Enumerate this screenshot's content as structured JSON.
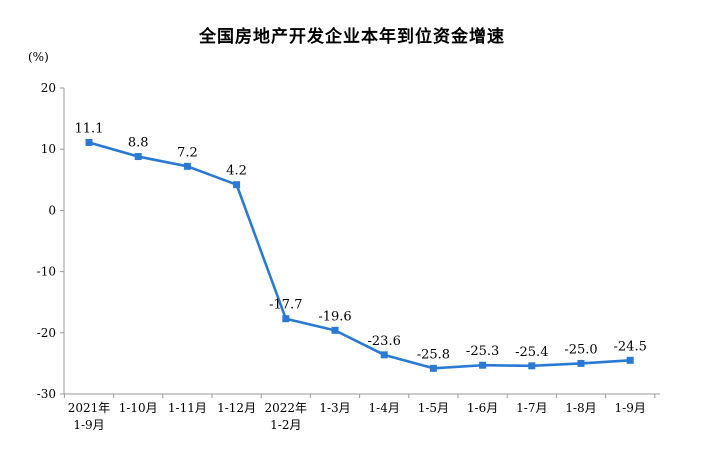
{
  "chart_data": {
    "type": "line",
    "title": "全国房地产开发企业本年到位资金增速",
    "unit": "(%)",
    "categories": [
      [
        "2021年",
        "1-9月"
      ],
      [
        "1-10月"
      ],
      [
        "1-11月"
      ],
      [
        "1-12月"
      ],
      [
        "2022年",
        "1-2月"
      ],
      [
        "1-3月"
      ],
      [
        "1-4月"
      ],
      [
        "1-5月"
      ],
      [
        "1-6月"
      ],
      [
        "1-7月"
      ],
      [
        "1-8月"
      ],
      [
        "1-9月"
      ]
    ],
    "series": [
      {
        "values": [
          11.1,
          8.8,
          7.2,
          4.2,
          -17.7,
          -19.6,
          -23.6,
          -25.8,
          -25.3,
          -25.4,
          -25.0,
          -24.5
        ],
        "labels": [
          "11.1",
          "8.8",
          "7.2",
          "4.2",
          "-17.7",
          "-19.6",
          "-23.6",
          "-25.8",
          "-25.3",
          "-25.4",
          "-25.0",
          "-24.5"
        ]
      }
    ],
    "ylim": [
      -30,
      20
    ],
    "yticks": [
      "20",
      "10",
      "0",
      "-10",
      "-20",
      "-30"
    ],
    "ytick_values": [
      20,
      10,
      0,
      -10,
      -20,
      -30
    ],
    "grid": false,
    "line_color": "#2a7ad5",
    "axis_color": "#999999"
  }
}
